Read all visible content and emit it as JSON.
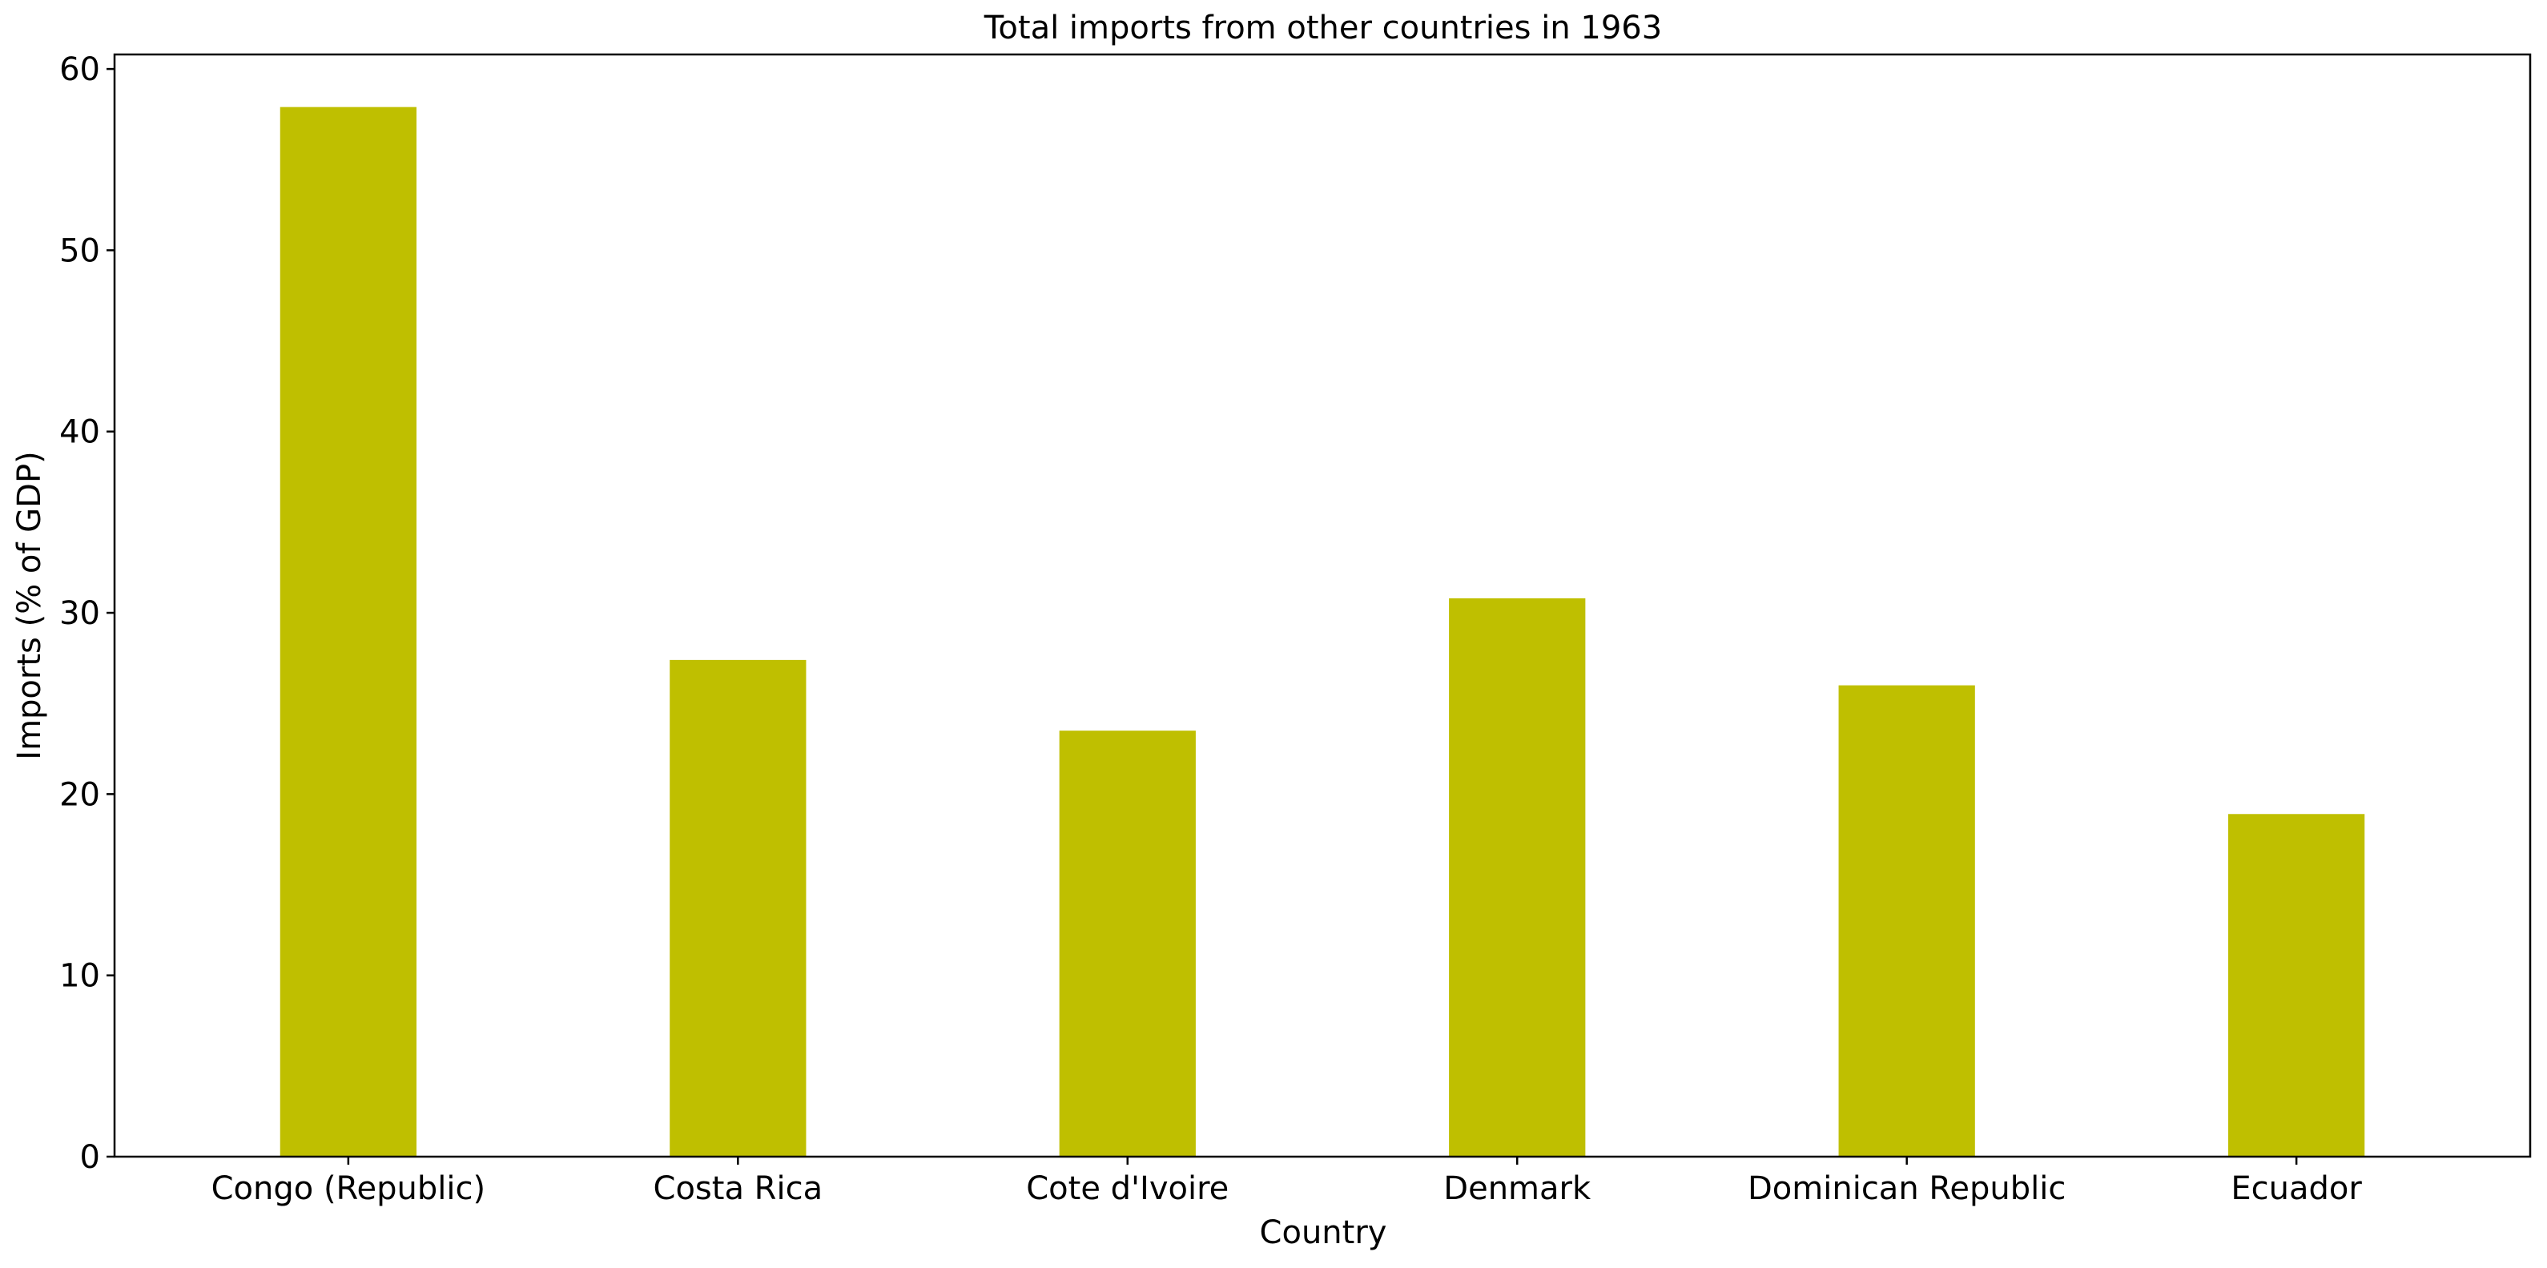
{
  "chart_data": {
    "type": "bar",
    "title": "Total imports from other countries in 1963",
    "xlabel": "Country",
    "ylabel": "Imports (% of GDP)",
    "categories": [
      "Congo (Republic)",
      "Costa Rica",
      "Cote d'Ivoire",
      "Denmark",
      "Dominican Republic",
      "Ecuador"
    ],
    "series": [
      {
        "values": [
          57.9,
          27.4,
          23.5,
          30.8,
          26.0,
          18.9
        ]
      }
    ],
    "ylim": [
      0,
      60.8
    ],
    "yticks": [
      0,
      10,
      20,
      30,
      40,
      50,
      60
    ],
    "grid": false,
    "legend": "none",
    "colors": {
      "bar": "#bfbf00",
      "axis": "#000000",
      "background": "#ffffff"
    }
  }
}
